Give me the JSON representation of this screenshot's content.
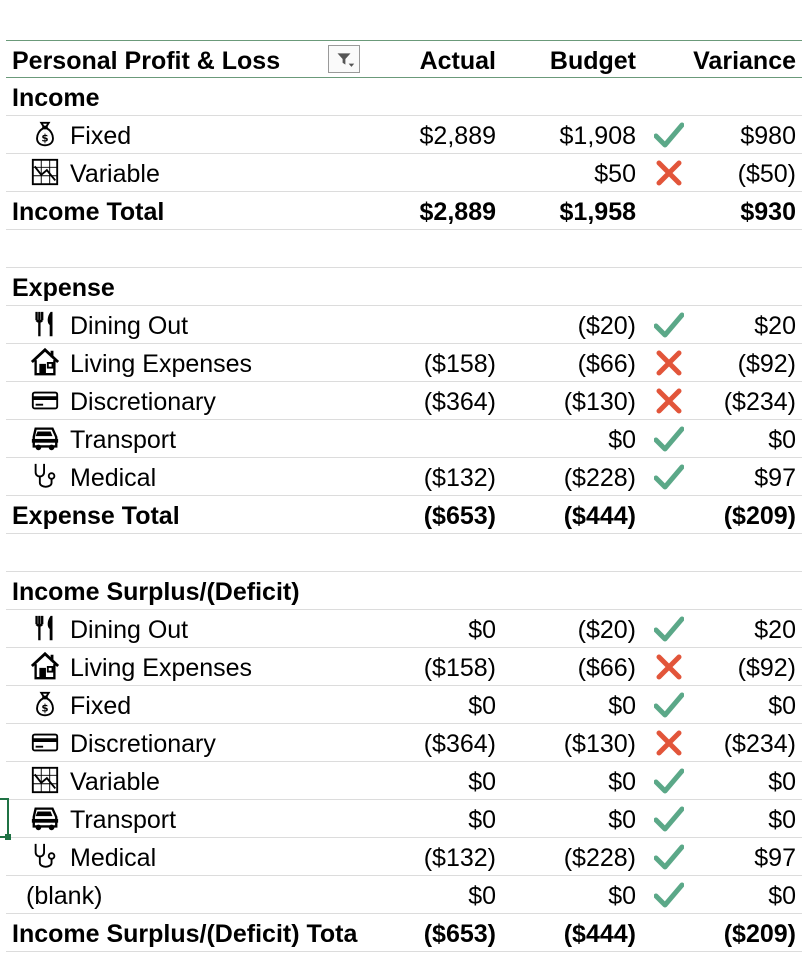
{
  "header": {
    "title": "Personal Profit & Loss",
    "actual": "Actual",
    "budget": "Budget",
    "variance": "Variance"
  },
  "colors": {
    "check": "#5ba888",
    "cross": "#e2553a",
    "header_border": "#6b9a7a",
    "gridline": "#dcdcdc",
    "selection": "#1f7244"
  },
  "income": {
    "title": "Income",
    "rows": [
      {
        "label": "Fixed",
        "icon": "money-bag-icon",
        "actual": "$2,889",
        "budget": "$1,908",
        "status": "check",
        "variance": "$980"
      },
      {
        "label": "Variable",
        "icon": "chart-icon",
        "actual": "",
        "budget": "$50",
        "status": "cross",
        "variance": "($50)"
      }
    ],
    "total": {
      "label": "Income Total",
      "actual": "$2,889",
      "budget": "$1,958",
      "variance": "$930"
    }
  },
  "expense": {
    "title": "Expense",
    "rows": [
      {
        "label": "Dining Out",
        "icon": "utensils-icon",
        "actual": "",
        "budget": "($20)",
        "status": "check",
        "variance": "$20"
      },
      {
        "label": "Living Expenses",
        "icon": "house-icon",
        "actual": "($158)",
        "budget": "($66)",
        "status": "cross",
        "variance": "($92)"
      },
      {
        "label": "Discretionary",
        "icon": "credit-card-icon",
        "actual": "($364)",
        "budget": "($130)",
        "status": "cross",
        "variance": "($234)"
      },
      {
        "label": "Transport",
        "icon": "vehicle-icon",
        "actual": "",
        "budget": "$0",
        "status": "check",
        "variance": "$0"
      },
      {
        "label": "Medical",
        "icon": "stethoscope-icon",
        "actual": "($132)",
        "budget": "($228)",
        "status": "check",
        "variance": "$97"
      }
    ],
    "total": {
      "label": "Expense Total",
      "actual": "($653)",
      "budget": "($444)",
      "variance": "($209)"
    }
  },
  "surplus": {
    "title": "Income Surplus/(Deficit)",
    "rows": [
      {
        "label": "Dining Out",
        "icon": "utensils-icon",
        "actual": "$0",
        "budget": "($20)",
        "status": "check",
        "variance": "$20"
      },
      {
        "label": "Living Expenses",
        "icon": "house-icon",
        "actual": "($158)",
        "budget": "($66)",
        "status": "cross",
        "variance": "($92)"
      },
      {
        "label": "Fixed",
        "icon": "money-bag-icon",
        "actual": "$0",
        "budget": "$0",
        "status": "check",
        "variance": "$0"
      },
      {
        "label": "Discretionary",
        "icon": "credit-card-icon",
        "actual": "($364)",
        "budget": "($130)",
        "status": "cross",
        "variance": "($234)"
      },
      {
        "label": "Variable",
        "icon": "chart-icon",
        "actual": "$0",
        "budget": "$0",
        "status": "check",
        "variance": "$0"
      },
      {
        "label": "Transport",
        "icon": "vehicle-icon",
        "actual": "$0",
        "budget": "$0",
        "status": "check",
        "variance": "$0"
      },
      {
        "label": "Medical",
        "icon": "stethoscope-icon",
        "actual": "($132)",
        "budget": "($228)",
        "status": "check",
        "variance": "$97"
      },
      {
        "label": "(blank)",
        "icon": "",
        "actual": "$0",
        "budget": "$0",
        "status": "check",
        "variance": "$0"
      }
    ],
    "total": {
      "label": "Income Surplus/(Deficit) Tota",
      "actual": "($653)",
      "budget": "($444)",
      "variance": "($209)"
    }
  }
}
